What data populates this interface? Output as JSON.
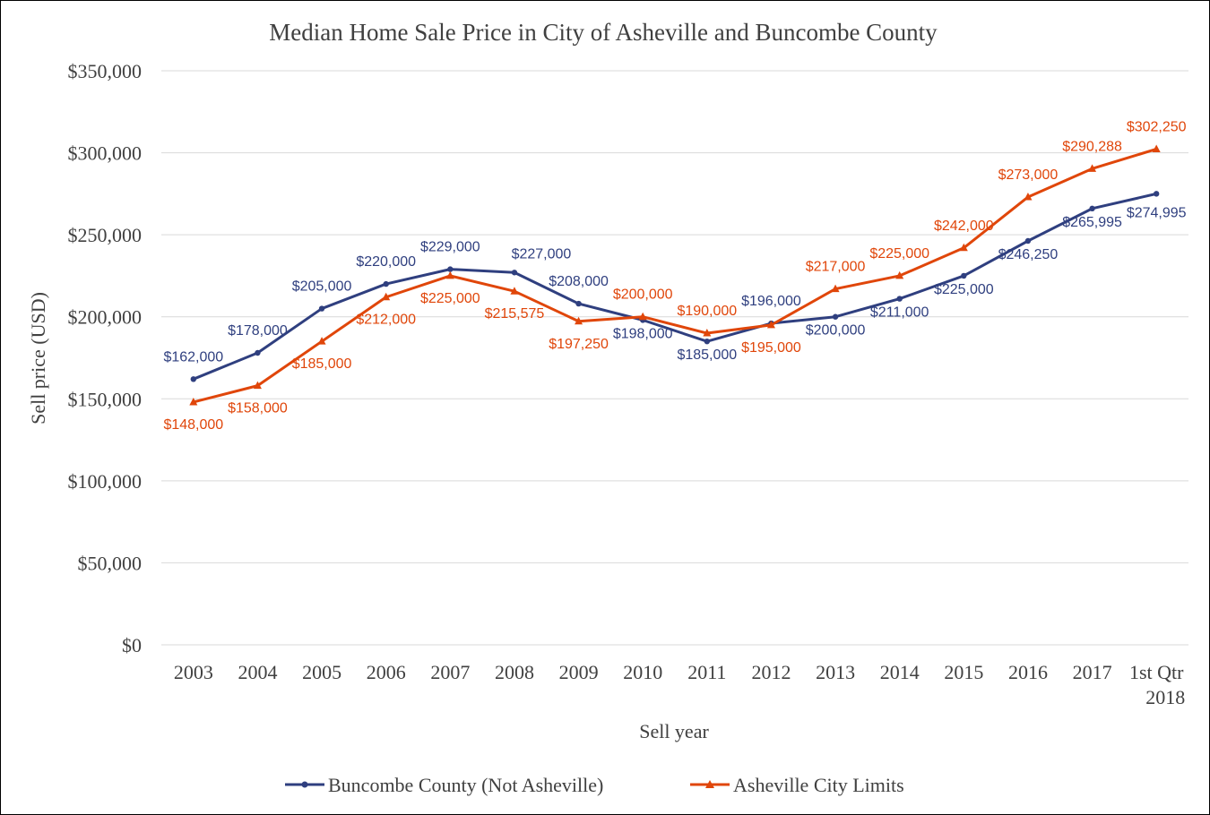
{
  "chart_data": {
    "type": "line",
    "title": "Median Home Sale Price in City of Asheville  and Buncombe County",
    "xlabel": "Sell year",
    "ylabel": "Sell price (USD)",
    "ylim": [
      0,
      350000
    ],
    "y_ticks": [
      "$0",
      "$50,000",
      "$100,000",
      "$150,000",
      "$200,000",
      "$250,000",
      "$300,000",
      "$350,000"
    ],
    "categories": [
      "2003",
      "2004",
      "2005",
      "2006",
      "2007",
      "2008",
      "2009",
      "2010",
      "2011",
      "2012",
      "2013",
      "2014",
      "2015",
      "2016",
      "2017",
      "1st Qtr 2018"
    ],
    "grid": true,
    "legend_position": "bottom",
    "series": [
      {
        "name": "Buncombe County (Not Asheville)",
        "color": "#2f3f7f",
        "marker": "circle",
        "values": [
          162000,
          178000,
          205000,
          220000,
          229000,
          227000,
          208000,
          198000,
          185000,
          196000,
          200000,
          211000,
          225000,
          246250,
          265995,
          274995
        ],
        "labels": [
          "$162,000",
          "$178,000",
          "$205,000",
          "$220,000",
          "$229,000",
          "$227,000",
          "$208,000",
          "$198,000",
          "$185,000",
          "$196,000",
          "$200,000",
          "$211,000",
          "$225,000",
          "$246,250",
          "$265,995",
          "$274,995"
        ]
      },
      {
        "name": "Asheville City Limits",
        "color": "#e0460a",
        "marker": "triangle",
        "values": [
          148000,
          158000,
          185000,
          212000,
          225000,
          215575,
          197250,
          200000,
          190000,
          195000,
          217000,
          225000,
          242000,
          273000,
          290288,
          302250
        ],
        "labels": [
          "$148,000",
          "$158,000",
          "$185,000",
          "$212,000",
          "$225,000",
          "$215,575",
          "$197,250",
          "$200,000",
          "$190,000",
          "$195,000",
          "$217,000",
          "$225,000",
          "$242,000",
          "$273,000",
          "$290,288",
          "$302,250"
        ]
      }
    ]
  }
}
